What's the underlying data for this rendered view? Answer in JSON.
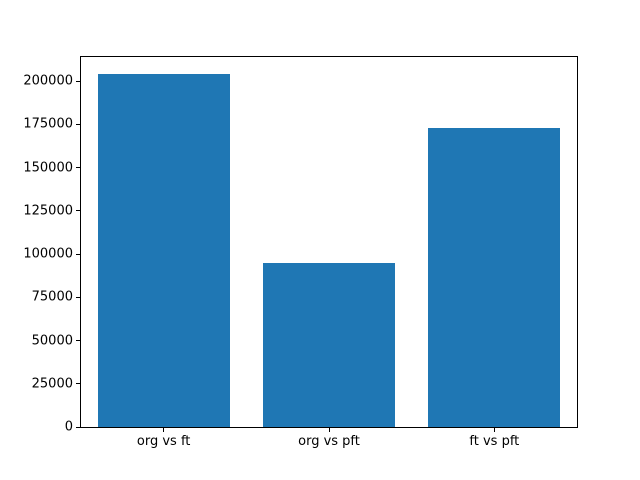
{
  "chart_data": {
    "type": "bar",
    "categories": [
      "org vs ft",
      "org vs pft",
      "ft vs pft"
    ],
    "values": [
      204000,
      95000,
      173000
    ],
    "title": "",
    "xlabel": "",
    "ylabel": "",
    "ylim": [
      0,
      214000
    ],
    "yticks": [
      0,
      25000,
      50000,
      75000,
      100000,
      125000,
      150000,
      175000,
      200000
    ],
    "bar_color": "#1f77b4",
    "axis_color": "#000000",
    "background_color": "#ffffff",
    "bar_width_fraction": 0.8,
    "grid": false,
    "legend": null
  }
}
